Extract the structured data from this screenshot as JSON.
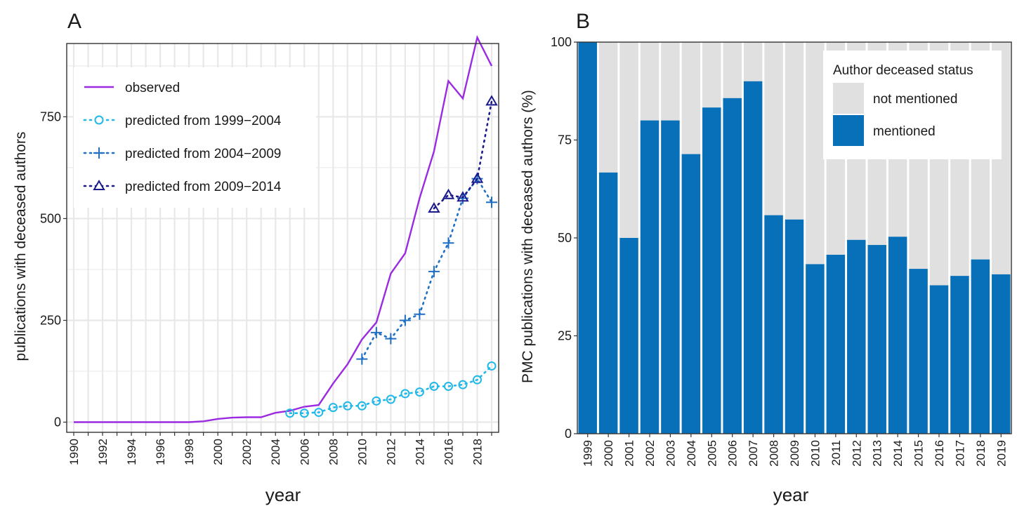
{
  "colors": {
    "observed": "#9b2be0",
    "p1999": "#20b8e8",
    "p2004": "#1f6fc4",
    "p2009": "#1a1a8c",
    "mentioned": "#0770b8",
    "not_mentioned": "#e0e0e0",
    "panel_bg_a": "#ffffff",
    "grid_a": "#e8e8e8"
  },
  "chart_data": [
    {
      "panel_label": "A",
      "type": "line",
      "xlabel": "year",
      "ylabel": "publications with deceased authors",
      "xlim": [
        1990,
        2019
      ],
      "ylim": [
        -25,
        930
      ],
      "x_ticks": [
        "1990",
        "1991",
        "1992",
        "1993",
        "1994",
        "1995",
        "1996",
        "1997",
        "1998",
        "1999",
        "2000",
        "2001",
        "2002",
        "2003",
        "2004",
        "2005",
        "2006",
        "2007",
        "2008",
        "2009",
        "2010",
        "2011",
        "2012",
        "2013",
        "2014",
        "2015",
        "2016",
        "2017",
        "2018",
        "2019"
      ],
      "x_tick_labels": [
        "1990",
        "",
        "1992",
        "",
        "1994",
        "",
        "1996",
        "",
        "1998",
        "",
        "2000",
        "",
        "2002",
        "",
        "2004",
        "",
        "2006",
        "",
        "2008",
        "",
        "2010",
        "",
        "2012",
        "",
        "2014",
        "",
        "2016",
        "",
        "2018",
        ""
      ],
      "y_ticks": [
        0,
        250,
        500,
        750
      ],
      "y_tick_labels": [
        "0",
        "250",
        "500",
        "750"
      ],
      "grid": true,
      "legend_position": "top-left",
      "series": [
        {
          "name": "observed",
          "style": "solid",
          "marker": "none",
          "x": [
            1990,
            1991,
            1992,
            1993,
            1994,
            1995,
            1996,
            1997,
            1998,
            1999,
            2000,
            2001,
            2002,
            2003,
            2004,
            2005,
            2006,
            2007,
            2008,
            2009,
            2010,
            2011,
            2012,
            2013,
            2014,
            2015,
            2016,
            2017,
            2018,
            2019
          ],
          "y": [
            0,
            0,
            0,
            0,
            0,
            0,
            0,
            0,
            0,
            2,
            8,
            11,
            12,
            12,
            23,
            28,
            38,
            42,
            95,
            142,
            203,
            245,
            365,
            415,
            550,
            665,
            838,
            795,
            945,
            875
          ]
        },
        {
          "name": "predicted from 1999−2004",
          "style": "dotted",
          "marker": "circle",
          "x": [
            2005,
            2006,
            2007,
            2008,
            2009,
            2010,
            2011,
            2012,
            2013,
            2014,
            2015,
            2016,
            2017,
            2018,
            2019
          ],
          "y": [
            22,
            22,
            24,
            36,
            40,
            40,
            52,
            56,
            70,
            74,
            88,
            88,
            92,
            104,
            138
          ]
        },
        {
          "name": "predicted from 2004−2009",
          "style": "dotted",
          "marker": "plus",
          "x": [
            2010,
            2011,
            2012,
            2013,
            2014,
            2015,
            2016,
            2017,
            2018,
            2019
          ],
          "y": [
            155,
            220,
            205,
            250,
            265,
            370,
            440,
            550,
            598,
            540
          ]
        },
        {
          "name": "predicted from 2009−2014",
          "style": "dotted",
          "marker": "triangle",
          "x": [
            2015,
            2016,
            2017,
            2018,
            2019
          ],
          "y": [
            525,
            558,
            552,
            598,
            788
          ]
        }
      ]
    },
    {
      "panel_label": "B",
      "type": "bar",
      "stacked": true,
      "xlabel": "year",
      "ylabel": "PMC publications with deceased authors (%)",
      "ylim": [
        0,
        100
      ],
      "y_ticks": [
        0,
        25,
        50,
        75,
        100
      ],
      "y_tick_labels": [
        "0",
        "25",
        "50",
        "75",
        "100"
      ],
      "categories": [
        "1999",
        "2000",
        "2001",
        "2002",
        "2003",
        "2004",
        "2005",
        "2006",
        "2007",
        "2008",
        "2009",
        "2010",
        "2011",
        "2012",
        "2013",
        "2014",
        "2015",
        "2016",
        "2017",
        "2018",
        "2019"
      ],
      "legend_title": "Author deceased status",
      "legend_position": "top-right",
      "series": [
        {
          "name": "not mentioned",
          "values": [
            0,
            33.3,
            50,
            20,
            20,
            28.6,
            16.7,
            14.3,
            10,
            44.2,
            45.3,
            56.7,
            54.3,
            50.5,
            51.8,
            49.7,
            57.9,
            62.1,
            59.7,
            55.5,
            59.3
          ]
        },
        {
          "name": "mentioned",
          "values": [
            100,
            66.7,
            50,
            80,
            80,
            71.4,
            83.3,
            85.7,
            90,
            55.8,
            54.7,
            43.3,
            45.7,
            49.5,
            48.2,
            50.3,
            42.1,
            37.9,
            40.3,
            44.5,
            40.7
          ]
        }
      ]
    }
  ]
}
